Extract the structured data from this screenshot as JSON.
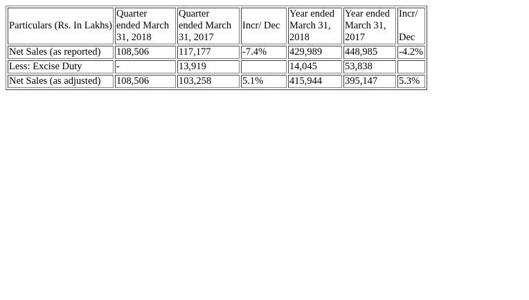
{
  "table": {
    "header": {
      "particulars": "Particulars (Rs. In Lakhs)",
      "q2018": [
        "Quarter",
        "ended March",
        "31, 2018"
      ],
      "q2017": [
        "Quarter",
        "ended March",
        "31, 2017"
      ],
      "incr_q": "Incr/ Dec",
      "y2018": [
        "Year ended",
        "March 31,",
        "2018"
      ],
      "y2017": [
        "Year ended",
        "March 31,",
        "2017"
      ],
      "incr_y": [
        "Incr/",
        "",
        "Dec"
      ]
    },
    "rows": [
      {
        "label": "Net Sales (as reported)",
        "q2018": "108,506",
        "q2017": "117,177",
        "incr_q": "-7.4%",
        "y2018": "429,989",
        "y2017": "448,985",
        "incr_y": "-4.2%"
      },
      {
        "label": "Less: Excise Duty",
        "q2018": "-",
        "q2017": "13,919",
        "incr_q": "",
        "y2018": "14,045",
        "y2017": "53,838",
        "incr_y": ""
      },
      {
        "label": "Net Sales (as adjusted)",
        "q2018": "108,506",
        "q2017": "103,258",
        "incr_q": "5.1%",
        "y2018": "415,944",
        "y2017": "395,147",
        "incr_y": "5.3%"
      }
    ]
  }
}
